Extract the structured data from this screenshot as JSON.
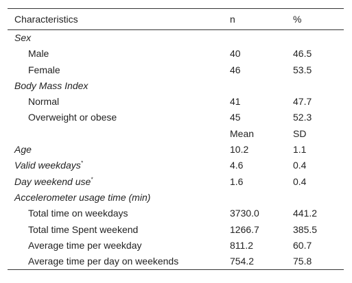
{
  "table": {
    "headers": [
      "Characteristics",
      "n",
      "%"
    ],
    "rows": [
      {
        "label": "Sex",
        "type": "section"
      },
      {
        "label": "Male",
        "type": "item",
        "v1": "40",
        "v2": "46.5"
      },
      {
        "label": "Female",
        "type": "item",
        "v1": "46",
        "v2": "53.5"
      },
      {
        "label": "Body Mass Index",
        "type": "section"
      },
      {
        "label": "Normal",
        "type": "item",
        "v1": "41",
        "v2": "47.7"
      },
      {
        "label": "Overweight or obese",
        "type": "item",
        "v1": "45",
        "v2": "52.3"
      },
      {
        "label": "",
        "type": "subheader",
        "v1": "Mean",
        "v2": "SD"
      },
      {
        "label": "Age",
        "type": "var",
        "v1": "10.2",
        "v2": "1.1"
      },
      {
        "label": "Valid weekdays",
        "type": "var",
        "note": "*",
        "v1": "4.6",
        "v2": "0.4"
      },
      {
        "label": "Day weekend use",
        "type": "var",
        "note": "*",
        "v1": "1.6",
        "v2": "0.4"
      },
      {
        "label": "Accelerometer usage time (min)",
        "type": "section"
      },
      {
        "label": "Total time on weekdays",
        "type": "item",
        "v1": "3730.0",
        "v2": "441.2"
      },
      {
        "label": "Total time Spent weekend",
        "type": "item",
        "v1": "1266.7",
        "v2": "385.5"
      },
      {
        "label": "Average time per weekday",
        "type": "item",
        "v1": "811.2",
        "v2": "60.7"
      },
      {
        "label": "Average time per day on weekends",
        "type": "item",
        "v1": "754.2",
        "v2": "75.8"
      }
    ]
  }
}
